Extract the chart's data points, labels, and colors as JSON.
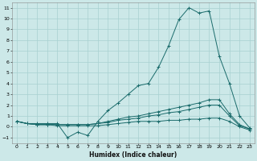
{
  "xlabel": "Humidex (Indice chaleur)",
  "xlim": [
    -0.5,
    23.5
  ],
  "ylim": [
    -1.5,
    11.5
  ],
  "yticks": [
    -1,
    0,
    1,
    2,
    3,
    4,
    5,
    6,
    7,
    8,
    9,
    10,
    11
  ],
  "xticks": [
    0,
    1,
    2,
    3,
    4,
    5,
    6,
    7,
    8,
    9,
    10,
    11,
    12,
    13,
    14,
    15,
    16,
    17,
    18,
    19,
    20,
    21,
    22,
    23
  ],
  "bg_color": "#cce8e8",
  "grid_color": "#a8d0d0",
  "line_color": "#1a6b6b",
  "curves": [
    {
      "x": [
        0,
        1,
        2,
        3,
        4,
        5,
        6,
        7,
        8,
        9,
        10,
        11,
        12,
        13,
        14,
        15,
        16,
        17,
        18,
        19,
        20,
        21,
        22,
        23
      ],
      "y": [
        0.5,
        0.3,
        0.3,
        0.3,
        0.3,
        -1.0,
        -0.5,
        -0.8,
        0.5,
        1.5,
        2.2,
        3.0,
        3.8,
        4.0,
        5.5,
        7.5,
        9.9,
        11.0,
        10.5,
        10.7,
        6.5,
        4.0,
        1.0,
        -0.1
      ]
    },
    {
      "x": [
        0,
        1,
        2,
        3,
        4,
        5,
        6,
        7,
        8,
        9,
        10,
        11,
        12,
        13,
        14,
        15,
        16,
        17,
        18,
        19,
        20,
        21,
        22,
        23
      ],
      "y": [
        0.5,
        0.3,
        0.2,
        0.2,
        0.2,
        0.2,
        0.2,
        0.2,
        0.3,
        0.5,
        0.7,
        0.9,
        1.0,
        1.2,
        1.4,
        1.6,
        1.8,
        2.0,
        2.2,
        2.5,
        2.5,
        1.2,
        0.2,
        -0.2
      ]
    },
    {
      "x": [
        0,
        1,
        2,
        3,
        4,
        5,
        6,
        7,
        8,
        9,
        10,
        11,
        12,
        13,
        14,
        15,
        16,
        17,
        18,
        19,
        20,
        21,
        22,
        23
      ],
      "y": [
        0.5,
        0.3,
        0.2,
        0.2,
        0.2,
        0.2,
        0.2,
        0.2,
        0.3,
        0.4,
        0.6,
        0.7,
        0.8,
        1.0,
        1.1,
        1.3,
        1.4,
        1.6,
        1.8,
        2.0,
        2.0,
        1.0,
        0.1,
        -0.2
      ]
    },
    {
      "x": [
        0,
        1,
        2,
        3,
        4,
        5,
        6,
        7,
        8,
        9,
        10,
        11,
        12,
        13,
        14,
        15,
        16,
        17,
        18,
        19,
        20,
        21,
        22,
        23
      ],
      "y": [
        0.5,
        0.3,
        0.2,
        0.2,
        0.1,
        0.1,
        0.1,
        0.1,
        0.1,
        0.2,
        0.3,
        0.4,
        0.5,
        0.5,
        0.5,
        0.6,
        0.6,
        0.7,
        0.7,
        0.8,
        0.8,
        0.5,
        0.0,
        -0.3
      ]
    }
  ]
}
